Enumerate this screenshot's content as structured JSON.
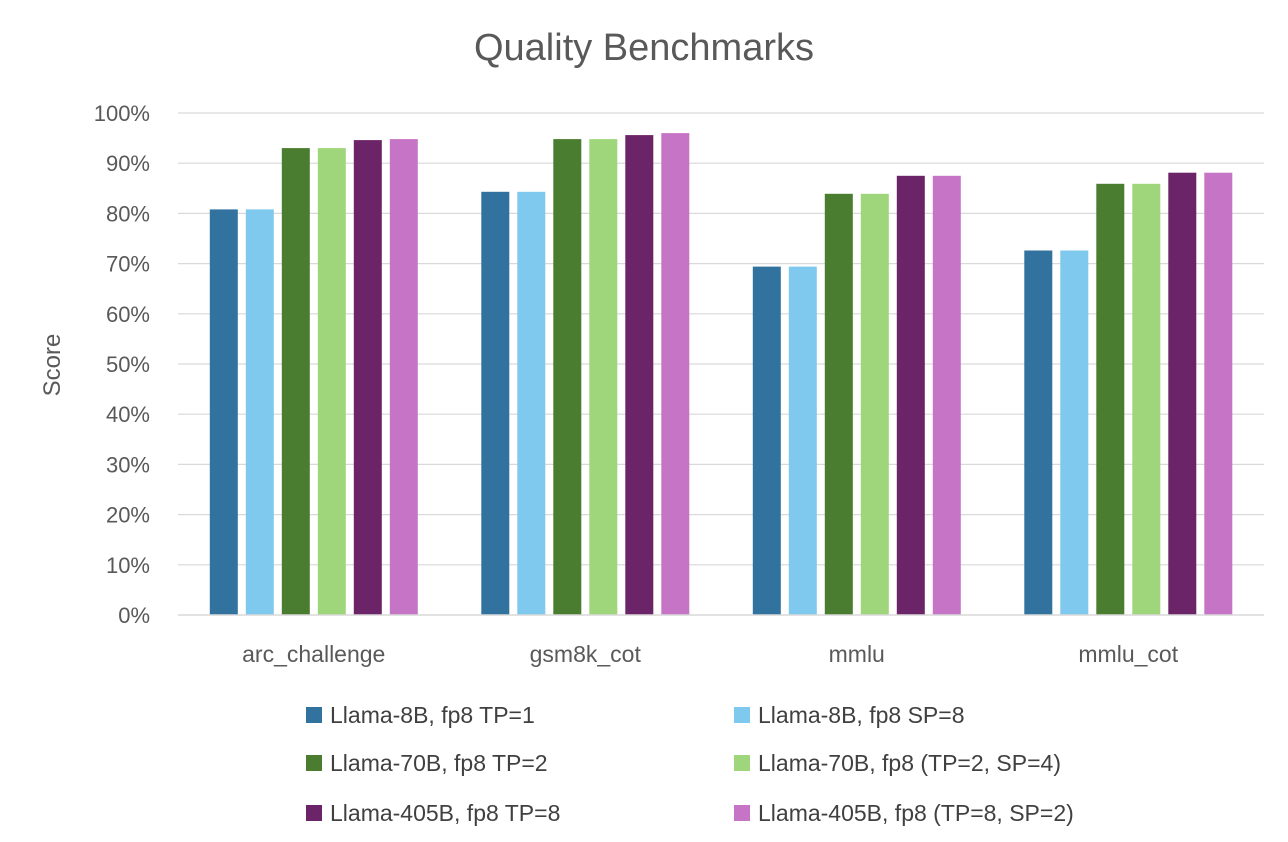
{
  "chart_data": {
    "type": "bar",
    "title": "Quality Benchmarks",
    "xlabel": "",
    "ylabel": "Score",
    "ylim": [
      0,
      100
    ],
    "yticks": [
      "0%",
      "10%",
      "20%",
      "30%",
      "40%",
      "50%",
      "60%",
      "70%",
      "80%",
      "90%",
      "100%"
    ],
    "grid": true,
    "legend_position": "bottom",
    "categories": [
      "arc_challenge",
      "gsm8k_cot",
      "mmlu",
      "mmlu_cot"
    ],
    "series": [
      {
        "name": "Llama-8B, fp8 TP=1",
        "color": "#31729f",
        "values": [
          80.8,
          84.3,
          69.4,
          72.6
        ]
      },
      {
        "name": "Llama-8B, fp8 SP=8",
        "color": "#7fc8ee",
        "values": [
          80.8,
          84.3,
          69.4,
          72.6
        ]
      },
      {
        "name": "Llama-70B, fp8 TP=2",
        "color": "#4b7d31",
        "values": [
          93.0,
          94.8,
          83.9,
          85.9
        ]
      },
      {
        "name": "Llama-70B, fp8 (TP=2, SP=4)",
        "color": "#a0d67b",
        "values": [
          93.0,
          94.8,
          83.9,
          85.9
        ]
      },
      {
        "name": "Llama-405B, fp8 TP=8",
        "color": "#6b2467",
        "values": [
          94.6,
          95.6,
          87.5,
          88.1
        ]
      },
      {
        "name": "Llama-405B, fp8 (TP=8, SP=2)",
        "color": "#c674c6",
        "values": [
          94.8,
          96.0,
          87.5,
          88.1
        ]
      }
    ]
  }
}
